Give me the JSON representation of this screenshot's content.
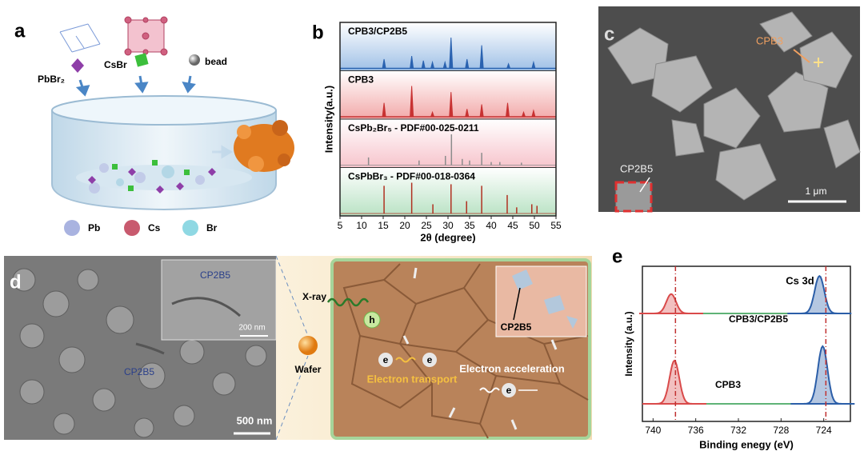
{
  "panels": {
    "a": {
      "label": "a",
      "reagents": [
        "PbBr₂",
        "CsBr",
        "bead"
      ],
      "elements": [
        "Pb",
        "Cs",
        "Br"
      ]
    },
    "c": {
      "label": "c",
      "annotations": [
        "CPB3",
        "CP2B5"
      ],
      "scale_bar": "1 μm"
    },
    "d": {
      "label": "d",
      "inset_label": "CP2B5",
      "inset_scale_bar": "200 nm",
      "sem_label": "CP2B5",
      "scale_bar": "500 nm",
      "xray": "X-ray",
      "hole": "h",
      "wafer": "Wafer",
      "electrons": [
        "e",
        "e",
        "e"
      ],
      "transport": "Electron transport",
      "acceleration": "Electron acceleration",
      "inset2_label": "CP2B5"
    }
  },
  "chart_data": [
    {
      "type": "xrd",
      "panel_label": "b",
      "xlabel": "2θ (degree)",
      "ylabel": "Intensity(a.u.)",
      "xlim": [
        5,
        55
      ],
      "xticks": [
        5,
        10,
        15,
        20,
        25,
        30,
        35,
        40,
        45,
        50,
        55
      ],
      "ylim": [
        0,
        100
      ],
      "series": [
        {
          "name": "CPB3/CP2B5",
          "color": "#2a62b0",
          "style": "profile",
          "x": [
            15.2,
            21.6,
            24.3,
            26.4,
            29.3,
            30.7,
            34.4,
            37.8,
            44,
            49.8
          ],
          "values": [
            30,
            40,
            25,
            20,
            20,
            100,
            30,
            75,
            15,
            20
          ]
        },
        {
          "name": "CPB3",
          "color": "#c83232",
          "style": "profile",
          "x": [
            15.2,
            21.6,
            26.4,
            30.7,
            34.4,
            37.8,
            43.8,
            47.5,
            49.8
          ],
          "values": [
            45,
            100,
            15,
            80,
            25,
            40,
            45,
            15,
            20
          ]
        },
        {
          "name": "CsPb₂Br₅ - PDF#00-025-0211",
          "color": "#8c8c8c",
          "style": "stick",
          "x": [
            11.6,
            23.3,
            29.4,
            30.8,
            33.3,
            35,
            37.8,
            40,
            42,
            47
          ],
          "values": [
            25,
            15,
            30,
            100,
            20,
            15,
            40,
            10,
            10,
            8
          ]
        },
        {
          "name": "CsPbBr₃ - PDF#00-018-0364",
          "color": "#b03020",
          "style": "stick",
          "x": [
            15.2,
            21.6,
            26.5,
            30.7,
            34.3,
            37.8,
            43.7,
            45.9,
            49.4,
            50.6
          ],
          "values": [
            90,
            100,
            30,
            95,
            40,
            90,
            60,
            20,
            30,
            25
          ]
        }
      ]
    },
    {
      "type": "xps",
      "panel_label": "e",
      "title": "Cs 3d",
      "xlabel": "Binding enegy (eV)",
      "ylabel": "Intensity (a.u.)",
      "xlim": [
        741,
        721.5
      ],
      "xticks": [
        740,
        736,
        732,
        728,
        724
      ],
      "ylim": [
        0,
        100
      ],
      "vlines": [
        737.9,
        723.8
      ],
      "vline_color": "#c03030",
      "series": [
        {
          "name": "CPB3/CP2B5",
          "colors": [
            "#d94a4a",
            "#2b5ea8"
          ],
          "baseline_color": "#2a9a4a",
          "x": [
            738.3,
            724.4
          ],
          "values": [
            27,
            52
          ]
        },
        {
          "name": "CPB3",
          "colors": [
            "#d94a4a",
            "#2b5ea8"
          ],
          "baseline_color": "#2a9a4a",
          "x": [
            738.0,
            724.1
          ],
          "values": [
            60,
            80
          ]
        }
      ]
    }
  ]
}
